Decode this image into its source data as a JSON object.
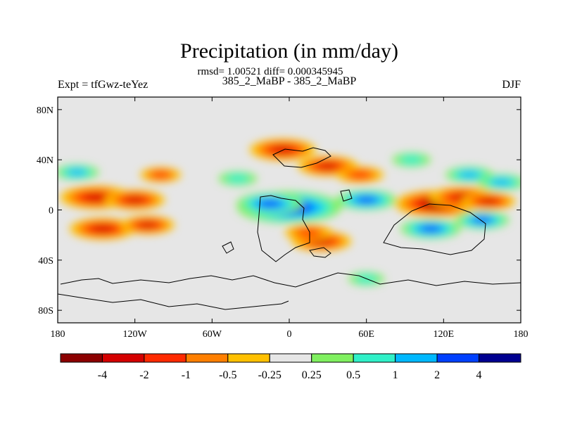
{
  "chart_data": {
    "type": "heatmap",
    "title": "Precipitation (in mm/day)",
    "stats_line": "rmsd= 1.00521  diff= 0.000345945",
    "subtitle": "385_2_MaBP - 385_2_MaBP",
    "left_label": "Expt = tfGwz-teYez",
    "right_label": "DJF",
    "x_ticks": [
      {
        "value": -180,
        "label": "180"
      },
      {
        "value": -120,
        "label": "120W"
      },
      {
        "value": -60,
        "label": "60W"
      },
      {
        "value": 0,
        "label": "0"
      },
      {
        "value": 60,
        "label": "60E"
      },
      {
        "value": 120,
        "label": "120E"
      },
      {
        "value": 180,
        "label": "180"
      }
    ],
    "y_ticks": [
      {
        "value": 80,
        "label": "80N"
      },
      {
        "value": 40,
        "label": "40N"
      },
      {
        "value": 0,
        "label": "0"
      },
      {
        "value": -40,
        "label": "40S"
      },
      {
        "value": -80,
        "label": "80S"
      }
    ],
    "xlim": [
      -180,
      180
    ],
    "ylim": [
      -90,
      90
    ],
    "levels": [
      -4,
      -2,
      -1,
      -0.5,
      -0.25,
      0.25,
      0.5,
      1,
      2,
      4
    ],
    "level_labels": [
      "-4",
      "-2",
      "-1",
      "-0.5",
      "-0.25",
      "0.25",
      "0.5",
      "1",
      "2",
      "4"
    ],
    "colors": [
      "#8b0000",
      "#d40000",
      "#ff2a00",
      "#ff7f00",
      "#ffc000",
      "#e6e6e6",
      "#80f060",
      "#30f0c8",
      "#00b8ff",
      "#0040ff",
      "#000090"
    ],
    "anomalies": [
      {
        "lon": -150,
        "lat": 10,
        "value": -3.5
      },
      {
        "lon": -120,
        "lat": 8,
        "value": -2.5
      },
      {
        "lon": -145,
        "lat": -15,
        "value": -3.0
      },
      {
        "lon": -110,
        "lat": -12,
        "value": -2.0
      },
      {
        "lon": 115,
        "lat": 5,
        "value": -4.5
      },
      {
        "lon": 135,
        "lat": 10,
        "value": -3.0
      },
      {
        "lon": 155,
        "lat": 7,
        "value": -2.0
      },
      {
        "lon": 0,
        "lat": 2,
        "value": 6.0
      },
      {
        "lon": -15,
        "lat": 5,
        "value": 3.0
      },
      {
        "lon": 60,
        "lat": 8,
        "value": 2.5
      },
      {
        "lon": 110,
        "lat": -15,
        "value": 2.5
      },
      {
        "lon": 150,
        "lat": -8,
        "value": 2.0
      },
      {
        "lon": 140,
        "lat": 28,
        "value": 1.5
      },
      {
        "lon": 165,
        "lat": 22,
        "value": 1.5
      },
      {
        "lon": -165,
        "lat": 30,
        "value": 1.2
      },
      {
        "lon": -40,
        "lat": 25,
        "value": 0.8
      },
      {
        "lon": -5,
        "lat": 48,
        "value": -3.0
      },
      {
        "lon": 30,
        "lat": 35,
        "value": -2.5
      },
      {
        "lon": 55,
        "lat": 28,
        "value": -1.5
      },
      {
        "lon": 25,
        "lat": -25,
        "value": -2.5
      },
      {
        "lon": 15,
        "lat": -18,
        "value": -1.5
      },
      {
        "lon": -100,
        "lat": 28,
        "value": -1.0
      },
      {
        "lon": 95,
        "lat": 40,
        "value": 0.8
      },
      {
        "lon": 60,
        "lat": -55,
        "value": 0.6
      }
    ]
  }
}
